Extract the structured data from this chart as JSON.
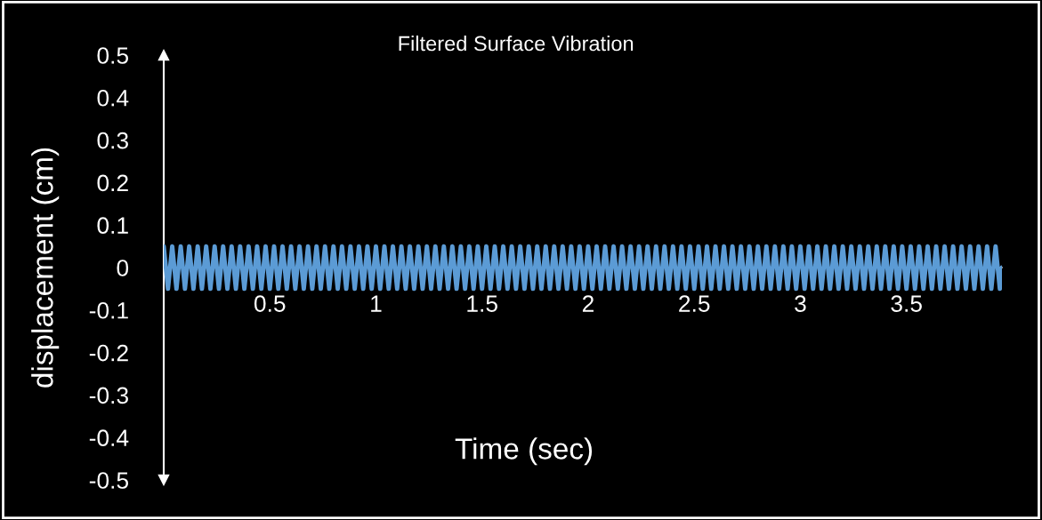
{
  "chart_data": {
    "type": "line",
    "title": "Filtered Surface Vibration",
    "xlabel": "Time (sec)",
    "ylabel": "displacement (cm)",
    "xlim": [
      0,
      3.95
    ],
    "ylim": [
      -0.5,
      0.5
    ],
    "xticks": [
      0.5,
      1,
      1.5,
      2,
      2.5,
      3,
      3.5
    ],
    "yticks": [
      0.5,
      0.4,
      0.3,
      0.2,
      0.1,
      0,
      -0.1,
      -0.2,
      -0.3,
      -0.4,
      -0.5
    ],
    "grid": false,
    "legend": false,
    "line_style": "solid",
    "x": [
      0,
      0.02,
      0.04,
      0.06,
      0.08,
      0.1,
      0.12,
      0.14,
      0.16,
      0.18,
      0.2,
      0.22,
      0.24,
      0.26,
      0.28,
      0.3,
      0.32,
      0.34,
      0.36,
      0.38,
      0.4,
      0.42,
      0.44,
      0.46,
      0.48,
      0.5,
      0.52,
      0.54,
      0.56,
      0.58,
      0.6,
      0.62,
      0.64,
      0.66,
      0.68,
      0.7,
      0.72,
      0.74,
      0.76,
      0.78,
      0.8,
      0.82,
      0.84,
      0.86,
      0.88,
      0.9,
      0.92,
      0.94,
      0.96,
      0.98,
      1,
      1.02,
      1.04,
      1.06,
      1.08,
      1.1,
      1.12,
      1.14,
      1.16,
      1.18,
      1.2,
      1.22,
      1.24,
      1.26,
      1.28,
      1.3,
      1.32,
      1.34,
      1.36,
      1.38,
      1.4,
      1.42,
      1.44,
      1.46,
      1.48,
      1.5,
      1.52,
      1.54,
      1.56,
      1.58,
      1.6,
      1.62,
      1.64,
      1.66,
      1.68,
      1.7,
      1.72,
      1.74,
      1.76,
      1.78,
      1.8,
      1.82,
      1.84,
      1.86,
      1.88,
      1.9,
      1.92,
      1.94,
      1.96,
      1.98,
      2,
      2.02,
      2.04,
      2.06,
      2.08,
      2.1,
      2.12,
      2.14,
      2.16,
      2.18,
      2.2,
      2.22,
      2.24,
      2.26,
      2.28,
      2.3,
      2.32,
      2.34,
      2.36,
      2.38,
      2.4,
      2.42,
      2.44,
      2.46,
      2.48,
      2.5,
      2.52,
      2.54,
      2.56,
      2.58,
      2.6,
      2.62,
      2.64,
      2.66,
      2.68,
      2.7,
      2.72,
      2.74,
      2.76,
      2.78,
      2.8,
      2.82,
      2.84,
      2.86,
      2.88,
      2.9,
      2.92,
      2.94,
      2.96,
      2.98,
      3,
      3.02,
      3.04,
      3.06,
      3.08,
      3.1,
      3.12,
      3.14,
      3.16,
      3.18,
      3.2,
      3.22,
      3.24,
      3.26,
      3.28,
      3.3,
      3.32,
      3.34,
      3.36,
      3.38,
      3.4,
      3.42,
      3.44,
      3.46,
      3.48,
      3.5,
      3.52,
      3.54,
      3.56,
      3.58,
      3.6,
      3.62,
      3.64,
      3.66,
      3.68,
      3.7,
      3.72,
      3.74,
      3.76,
      3.78,
      3.8,
      3.82,
      3.84,
      3.86,
      3.88,
      3.9,
      3.92,
      3.94,
      3.95
    ],
    "series": [
      {
        "color": "#5b9bd5",
        "values": [
          0.05,
          -0.05,
          0.05,
          -0.05,
          0.05,
          -0.05,
          0.05,
          -0.05,
          0.05,
          -0.05,
          0.05,
          -0.05,
          0.05,
          -0.05,
          0.05,
          -0.05,
          0.05,
          -0.05,
          0.05,
          -0.05,
          0.05,
          -0.05,
          0.05,
          -0.05,
          0.05,
          -0.05,
          0.05,
          -0.05,
          0.05,
          -0.05,
          0.05,
          -0.05,
          0.05,
          -0.05,
          0.05,
          -0.05,
          0.05,
          -0.05,
          0.05,
          -0.05,
          0.05,
          -0.05,
          0.05,
          -0.05,
          0.05,
          -0.05,
          0.05,
          -0.05,
          0.05,
          -0.05,
          0.05,
          -0.05,
          0.05,
          -0.05,
          0.05,
          -0.05,
          0.05,
          -0.05,
          0.05,
          -0.05,
          0.05,
          -0.05,
          0.05,
          -0.05,
          0.05,
          -0.05,
          0.05,
          -0.05,
          0.05,
          -0.05,
          0.05,
          -0.05,
          0.05,
          -0.05,
          0.05,
          -0.05,
          0.05,
          -0.05,
          0.05,
          -0.05,
          0.05,
          -0.05,
          0.05,
          -0.05,
          0.05,
          -0.05,
          0.05,
          -0.05,
          0.05,
          -0.05,
          0.05,
          -0.05,
          0.05,
          -0.05,
          0.05,
          -0.05,
          0.05,
          -0.05,
          0.05,
          -0.05,
          0.05,
          -0.05,
          0.05,
          -0.05,
          0.05,
          -0.05,
          0.05,
          -0.05,
          0.05,
          -0.05,
          0.05,
          -0.05,
          0.05,
          -0.05,
          0.05,
          -0.05,
          0.05,
          -0.05,
          0.05,
          -0.05,
          0.05,
          -0.05,
          0.05,
          -0.05,
          0.05,
          -0.05,
          0.05,
          -0.05,
          0.05,
          -0.05,
          0.05,
          -0.05,
          0.05,
          -0.05,
          0.05,
          -0.05,
          0.05,
          -0.05,
          0.05,
          -0.05,
          0.05,
          -0.05,
          0.05,
          -0.05,
          0.05,
          -0.05,
          0.05,
          -0.05,
          0.05,
          -0.05,
          0.05,
          -0.05,
          0.05,
          -0.05,
          0.05,
          -0.05,
          0.05,
          -0.05,
          0.05,
          -0.05,
          0.05,
          -0.05,
          0.05,
          -0.05,
          0.05,
          -0.05,
          0.05,
          -0.05,
          0.05,
          -0.05,
          0.05,
          -0.05,
          0.05,
          -0.05,
          0.05,
          -0.05,
          0.05,
          -0.05,
          0.05,
          -0.05,
          0.05,
          -0.05,
          0.05,
          -0.05,
          0.05,
          -0.05,
          0.05,
          -0.05,
          0.05,
          -0.05,
          0.05,
          -0.05,
          0.05,
          -0.05,
          0.05,
          -0.05,
          0.05,
          -0.05,
          0
        ]
      }
    ]
  }
}
